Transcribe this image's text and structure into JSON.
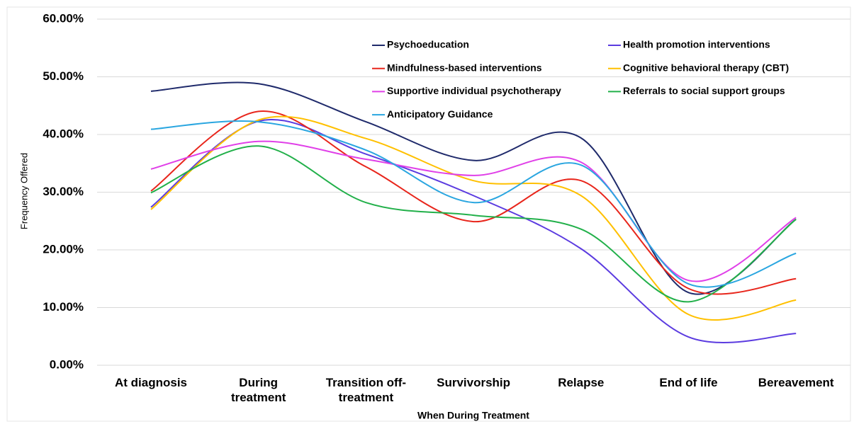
{
  "chart_data": {
    "type": "line",
    "x_label": "When During Treatment",
    "y_label": "Frequency Offered",
    "categories": [
      "At diagnosis",
      "During treatment",
      "Transition off-treatment",
      "Survivorship",
      "Relapse",
      "End of life",
      "Bereavement"
    ],
    "ylim": [
      0,
      60
    ],
    "yticks": [
      {
        "value": 0,
        "label": "0.00%"
      },
      {
        "value": 10,
        "label": "10.00%"
      },
      {
        "value": 20,
        "label": "20.00%"
      },
      {
        "value": 30,
        "label": "30.00%"
      },
      {
        "value": 40,
        "label": "40.00%"
      },
      {
        "value": 50,
        "label": "50.00%"
      },
      {
        "value": 60,
        "label": "60.00%"
      }
    ],
    "grid": true,
    "smooth": true,
    "series": [
      {
        "name": "Psychoeducation",
        "color": "#1f2a6b",
        "values": [
          47.5,
          48.8,
          42.2,
          35.5,
          39.4,
          12.6,
          25.3
        ]
      },
      {
        "name": "Health promotion interventions",
        "color": "#5b3be0",
        "values": [
          27.4,
          42.3,
          36.6,
          29.4,
          20.2,
          4.9,
          5.5
        ]
      },
      {
        "name": "Mindfulness-based interventions",
        "color": "#e8261c",
        "values": [
          30.2,
          44.0,
          34.4,
          24.9,
          32.0,
          13.3,
          15.0
        ]
      },
      {
        "name": "Cognitive behavioral therapy (CBT)",
        "color": "#ffc000",
        "values": [
          27.0,
          42.5,
          39.3,
          32.0,
          29.4,
          8.8,
          11.3
        ]
      },
      {
        "name": "Supportive individual psychotherapy",
        "color": "#e040e8",
        "values": [
          34.0,
          38.8,
          35.7,
          32.9,
          35.2,
          14.7,
          25.6
        ]
      },
      {
        "name": "Referrals to social support groups",
        "color": "#22b04a",
        "values": [
          29.9,
          38.0,
          28.2,
          26.0,
          23.6,
          11.0,
          25.3
        ]
      },
      {
        "name": "Anticipatory Guidance",
        "color": "#2aa6e0",
        "values": [
          40.9,
          42.2,
          37.3,
          28.2,
          34.7,
          14.1,
          19.4
        ]
      }
    ]
  }
}
